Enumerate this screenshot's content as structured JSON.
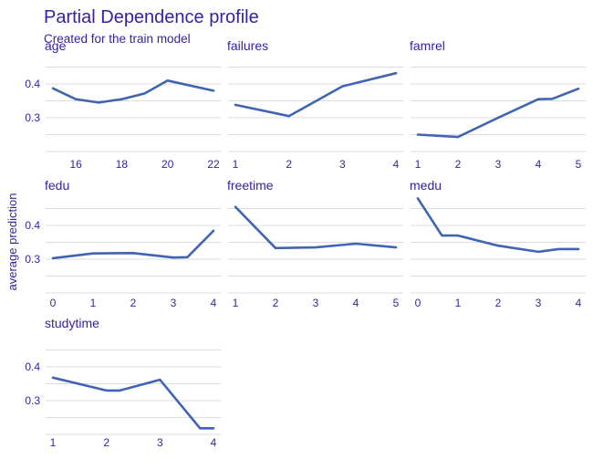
{
  "chart_data": {
    "type": "line",
    "title": "Partial Dependence profile",
    "subtitle": "Created for the train model",
    "ylabel": "average prediction",
    "line_color": "#4064b4",
    "text_color": "#371ea3",
    "grid_color": "#dcdcdc",
    "ylim": [
      0.2,
      0.48
    ],
    "yticks": [
      0.3,
      0.4
    ],
    "panels": [
      {
        "name": "age",
        "xticks": [
          16,
          18,
          20,
          22
        ],
        "xlim": [
          15,
          22
        ],
        "x": [
          15,
          16,
          17,
          18,
          19,
          20,
          22
        ],
        "y": [
          0.387,
          0.355,
          0.345,
          0.355,
          0.372,
          0.41,
          0.38
        ]
      },
      {
        "name": "failures",
        "xticks": [
          1,
          2,
          3,
          4
        ],
        "xlim": [
          1,
          4
        ],
        "x": [
          1,
          2,
          3,
          4
        ],
        "y": [
          0.338,
          0.305,
          0.393,
          0.432
        ]
      },
      {
        "name": "famrel",
        "xticks": [
          1,
          2,
          3,
          4,
          5
        ],
        "xlim": [
          1,
          5
        ],
        "x": [
          1,
          2,
          3,
          4,
          4.35,
          5
        ],
        "y": [
          0.25,
          0.243,
          0.3,
          0.355,
          0.356,
          0.386
        ]
      },
      {
        "name": "fedu",
        "xticks": [
          0,
          1,
          2,
          3,
          4
        ],
        "xlim": [
          0,
          4
        ],
        "x": [
          0,
          1,
          2,
          3,
          3.35,
          4
        ],
        "y": [
          0.303,
          0.317,
          0.318,
          0.305,
          0.306,
          0.384
        ]
      },
      {
        "name": "freetime",
        "xticks": [
          1,
          2,
          3,
          4,
          5
        ],
        "xlim": [
          1,
          5
        ],
        "x": [
          1,
          2,
          3,
          4,
          5
        ],
        "y": [
          0.455,
          0.333,
          0.335,
          0.346,
          0.335
        ]
      },
      {
        "name": "medu",
        "xticks": [
          0,
          1,
          2,
          3,
          4
        ],
        "xlim": [
          0,
          4
        ],
        "x": [
          0,
          0.6,
          1,
          2,
          3,
          3.5,
          4
        ],
        "y": [
          0.48,
          0.37,
          0.37,
          0.34,
          0.322,
          0.33,
          0.33
        ]
      },
      {
        "name": "studytime",
        "xticks": [
          1,
          2,
          3,
          4
        ],
        "xlim": [
          1,
          4
        ],
        "x": [
          1,
          2,
          2.25,
          3,
          3.75,
          4
        ],
        "y": [
          0.368,
          0.33,
          0.33,
          0.362,
          0.218,
          0.218
        ]
      }
    ]
  }
}
